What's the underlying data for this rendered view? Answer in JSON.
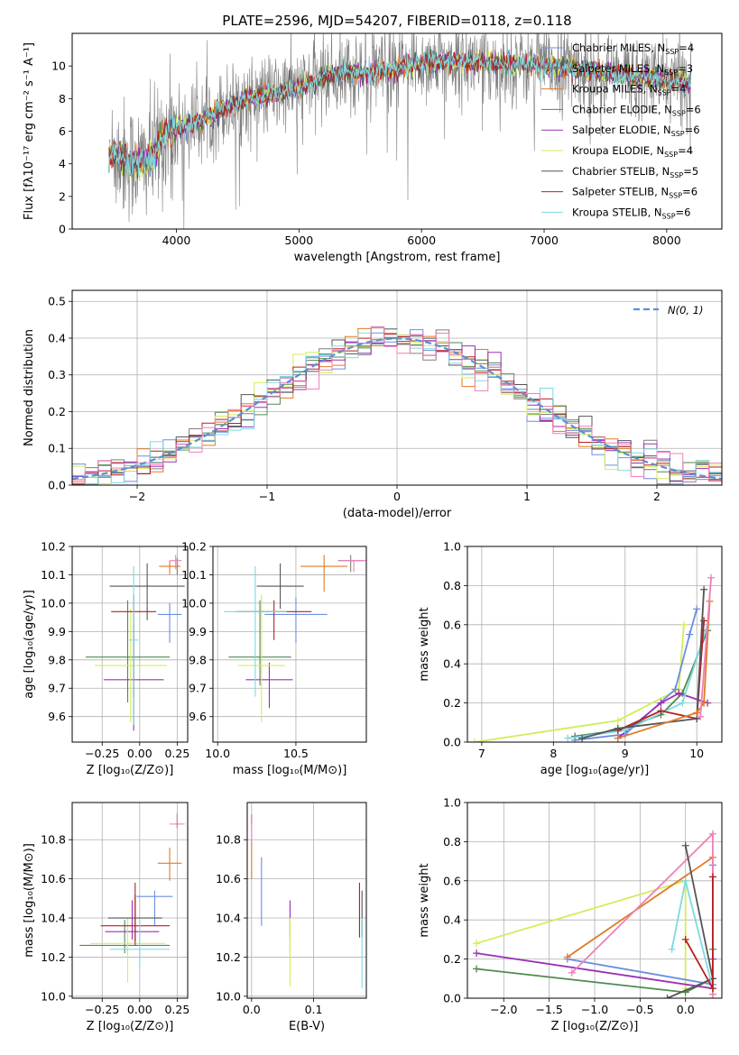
{
  "figure": {
    "title": "PLATE=2596, MJD=54207, FIBERID=0118, z=0.118"
  },
  "colors": {
    "Chabrier MILES": "#6c8ee0",
    "Salpeter MILES": "#7f7f7f",
    "Kroupa MILES": "#e07b28",
    "Chabrier ELODIE": "#4f8a4f",
    "Salpeter ELODIE": "#9b30b5",
    "Kroupa ELODIE": "#d4ec5a",
    "Chabrier STELIB": "#555555",
    "Salpeter STELIB": "#b22222",
    "Kroupa STELIB": "#7fd8e0",
    "Pink": "#f07fb8",
    "Normal": "#5b8fd6"
  },
  "chart_data": [
    {
      "id": "spectrum",
      "type": "line",
      "xlabel": "wavelength [Angstrom, rest frame]",
      "ylabel": "Flux [fλ10⁻¹⁷ erg cm⁻² s⁻¹ A⁻¹]",
      "xlim": [
        3150,
        8450
      ],
      "ylim": [
        0,
        12
      ],
      "xticks": [
        "4000",
        "5000",
        "6000",
        "7000",
        "8000"
      ],
      "yticks": [
        "0",
        "2",
        "4",
        "6",
        "8",
        "10"
      ],
      "continuum": {
        "x": [
          3450,
          3600,
          3700,
          3800,
          3900,
          4000,
          4200,
          4400,
          4600,
          4800,
          5000,
          5200,
          5400,
          5600,
          5800,
          6000,
          6200,
          6400,
          6600,
          6800,
          7000,
          7200,
          7400,
          7600,
          7800,
          8000,
          8200
        ],
        "y": [
          4.8,
          4.2,
          4.0,
          4.3,
          5.8,
          6.2,
          6.6,
          7.5,
          8.0,
          8.3,
          8.6,
          9.3,
          9.6,
          9.6,
          9.8,
          10.2,
          10.3,
          10.2,
          10.2,
          10.1,
          10.0,
          9.9,
          9.7,
          9.5,
          9.3,
          9.2,
          9.0
        ]
      },
      "legend": [
        {
          "label": "Chabrier MILES, N_SSP=4",
          "color": "#6c8ee0"
        },
        {
          "label": "Salpeter MILES, N_SSP=3",
          "color": "#7f7f7f"
        },
        {
          "label": "Kroupa MILES, N_SSP=4",
          "color": "#e07b28"
        },
        {
          "label": "Chabrier ELODIE, N_SSP=6",
          "color": "#4f8a4f"
        },
        {
          "label": "Salpeter ELODIE, N_SSP=6",
          "color": "#9b30b5"
        },
        {
          "label": "Kroupa ELODIE, N_SSP=4",
          "color": "#d4ec5a"
        },
        {
          "label": "Chabrier STELIB, N_SSP=5",
          "color": "#555555"
        },
        {
          "label": "Salpeter STELIB, N_SSP=6",
          "color": "#b22222"
        },
        {
          "label": "Kroupa STELIB, N_SSP=6",
          "color": "#7fd8e0"
        }
      ]
    },
    {
      "id": "residuals",
      "type": "line",
      "xlabel": "(data-model)/error",
      "ylabel": "Normed distribution",
      "xlim": [
        -2.5,
        2.5
      ],
      "ylim": [
        0,
        0.53
      ],
      "xticks": [
        "−2",
        "−1",
        "0",
        "1",
        "2"
      ],
      "yticks": [
        "0.0",
        "0.1",
        "0.2",
        "0.3",
        "0.4",
        "0.5"
      ],
      "grid": true,
      "legend": [
        {
          "label": "N(0, 1)",
          "color": "#5b8fd6"
        }
      ],
      "bins": {
        "start": -2.5,
        "width": 0.1,
        "count": 50
      }
    },
    {
      "id": "age-vs-Z",
      "type": "scatter",
      "xlabel": "Z [log₁₀(Z/Z⊙)]",
      "ylabel": "age  [log₁₀(age/yr)]",
      "xlim": [
        -0.45,
        0.32
      ],
      "ylim": [
        9.51,
        10.2
      ],
      "xticks": [
        "−0.25",
        "0.00",
        "0.25"
      ],
      "yticks": [
        "9.6",
        "9.7",
        "9.8",
        "9.9",
        "10.0",
        "10.1",
        "10.2"
      ],
      "grid": true,
      "points": [
        {
          "x": 0.2,
          "y": 9.96,
          "xe": 0.08,
          "yl": 0.1,
          "yh": 0.04,
          "color": "#6c8ee0"
        },
        {
          "x": 0.25,
          "y": 10.13,
          "xe": 0.02,
          "yl": 0.03,
          "yh": 0.03,
          "color": "#7f7f7f"
        },
        {
          "x": 0.2,
          "y": 10.13,
          "xe": 0.07,
          "yl": 0.03,
          "yh": 0.02,
          "color": "#e07b28"
        },
        {
          "x": -0.08,
          "y": 9.81,
          "xe": 0.28,
          "yl": 0.16,
          "yh": 0.2,
          "color": "#4f8a4f"
        },
        {
          "x": -0.04,
          "y": 9.73,
          "xe": 0.2,
          "yl": 0.18,
          "yh": 0.2,
          "color": "#9b30b5"
        },
        {
          "x": -0.06,
          "y": 9.78,
          "xe": 0.24,
          "yl": 0.2,
          "yh": 0.2,
          "color": "#d4ec5a"
        },
        {
          "x": 0.05,
          "y": 10.06,
          "xe": 0.25,
          "yl": 0.12,
          "yh": 0.08,
          "color": "#555555"
        },
        {
          "x": -0.04,
          "y": 9.97,
          "xe": 0.15,
          "yl": 0.3,
          "yh": 0.06,
          "color": "#b22222"
        },
        {
          "x": -0.04,
          "y": 9.87,
          "xe": 0.03,
          "yl": 0.3,
          "yh": 0.26,
          "color": "#7fd8e0"
        },
        {
          "x": 0.24,
          "y": 10.15,
          "xe": 0.04,
          "yl": 0.03,
          "yh": 0.02,
          "color": "#f07fb8"
        }
      ]
    },
    {
      "id": "age-vs-mass",
      "type": "scatter",
      "xlabel": "mass [log₁₀(M/M⊙)]",
      "ylabel": "",
      "xlim": [
        9.97,
        10.95
      ],
      "ylim": [
        9.51,
        10.2
      ],
      "xticks": [
        "10.0",
        "10.5"
      ],
      "yticks": [
        "9.6",
        "9.7",
        "9.8",
        "9.9",
        "10.0",
        "10.1",
        "10.2"
      ],
      "grid": true,
      "points": [
        {
          "x": 10.5,
          "y": 9.96,
          "xe": 0.2,
          "yl": 0.1,
          "yh": 0.06,
          "color": "#6c8ee0"
        },
        {
          "x": 10.85,
          "y": 10.15,
          "xe": 0.08,
          "yl": 0.04,
          "yh": 0.02,
          "color": "#7f7f7f"
        },
        {
          "x": 10.68,
          "y": 10.13,
          "xe": 0.15,
          "yl": 0.09,
          "yh": 0.04,
          "color": "#e07b28"
        },
        {
          "x": 10.27,
          "y": 9.81,
          "xe": 0.2,
          "yl": 0.1,
          "yh": 0.2,
          "color": "#4f8a4f"
        },
        {
          "x": 10.33,
          "y": 9.73,
          "xe": 0.15,
          "yl": 0.1,
          "yh": 0.06,
          "color": "#9b30b5"
        },
        {
          "x": 10.28,
          "y": 9.78,
          "xe": 0.15,
          "yl": 0.2,
          "yh": 0.25,
          "color": "#d4ec5a"
        },
        {
          "x": 10.4,
          "y": 10.06,
          "xe": 0.15,
          "yl": 0.08,
          "yh": 0.08,
          "color": "#555555"
        },
        {
          "x": 10.36,
          "y": 9.97,
          "xe": 0.24,
          "yl": 0.1,
          "yh": 0.04,
          "color": "#b22222"
        },
        {
          "x": 10.24,
          "y": 9.97,
          "xe": 0.2,
          "yl": 0.3,
          "yh": 0.16,
          "color": "#7fd8e0"
        },
        {
          "x": 10.87,
          "y": 10.15,
          "xe": 0.09,
          "yl": 0.04,
          "yh": 0.0,
          "color": "#f07fb8"
        }
      ]
    },
    {
      "id": "mass-weight-vs-age",
      "type": "line",
      "xlabel": "age  [log₁₀(age/yr)]",
      "ylabel": "mass weight",
      "xlim": [
        6.8,
        10.35
      ],
      "ylim": [
        0,
        1
      ],
      "xticks": [
        "7",
        "8",
        "9",
        "10"
      ],
      "yticks": [
        "0.0",
        "0.2",
        "0.4",
        "0.6",
        "0.8",
        "1.0"
      ],
      "grid": true,
      "series": [
        {
          "color": "#d4ec5a",
          "x": [
            6.9,
            8.9,
            9.75,
            9.82
          ],
          "y": [
            0.0,
            0.11,
            0.27,
            0.6
          ]
        },
        {
          "color": "#6c8ee0",
          "x": [
            8.3,
            9.0,
            9.7,
            9.9,
            10.0
          ],
          "y": [
            0.01,
            0.04,
            0.27,
            0.55,
            0.68
          ]
        },
        {
          "color": "#4f8a4f",
          "x": [
            8.3,
            8.9,
            9.5,
            9.8,
            10.15
          ],
          "y": [
            0.03,
            0.06,
            0.14,
            0.25,
            0.57
          ]
        },
        {
          "color": "#9b30b5",
          "x": [
            8.9,
            9.5,
            9.75,
            10.15
          ],
          "y": [
            0.02,
            0.2,
            0.25,
            0.2
          ]
        },
        {
          "color": "#7fd8e0",
          "x": [
            8.2,
            9.0,
            9.8,
            10.15
          ],
          "y": [
            0.02,
            0.06,
            0.2,
            0.6
          ]
        },
        {
          "color": "#b22222",
          "x": [
            8.9,
            9.5,
            10.0,
            10.1
          ],
          "y": [
            0.06,
            0.16,
            0.12,
            0.62
          ]
        },
        {
          "color": "#555555",
          "x": [
            8.4,
            8.9,
            10.0,
            10.1
          ],
          "y": [
            0.02,
            0.07,
            0.12,
            0.78
          ]
        },
        {
          "color": "#e07b28",
          "x": [
            8.9,
            10.0,
            10.1,
            10.18
          ],
          "y": [
            0.02,
            0.15,
            0.2,
            0.72
          ]
        },
        {
          "color": "#f07fb8",
          "x": [
            10.05,
            10.2
          ],
          "y": [
            0.13,
            0.84
          ]
        }
      ]
    },
    {
      "id": "mass-vs-Z",
      "type": "scatter",
      "xlabel": "Z [log₁₀(Z/Z⊙)]",
      "ylabel": "mass [log₁₀(M/M⊙)]",
      "xlim": [
        -0.45,
        0.32
      ],
      "ylim": [
        9.99,
        10.99
      ],
      "xticks": [
        "−0.25",
        "0.00",
        "0.25"
      ],
      "yticks": [
        "10.0",
        "10.2",
        "10.4",
        "10.6",
        "10.8"
      ],
      "grid": true,
      "points": [
        {
          "x": 0.1,
          "y": 10.51,
          "xe": 0.12,
          "yl": 0.15,
          "yh": 0.03,
          "color": "#6c8ee0"
        },
        {
          "x": 0.25,
          "y": 10.88,
          "xe": 0.01,
          "yl": 0.02,
          "yh": 0.05,
          "color": "#7f7f7f"
        },
        {
          "x": 0.2,
          "y": 10.68,
          "xe": 0.08,
          "yl": 0.09,
          "yh": 0.08,
          "color": "#e07b28"
        },
        {
          "x": -0.1,
          "y": 10.26,
          "xe": 0.3,
          "yl": 0.04,
          "yh": 0.13,
          "color": "#4f8a4f"
        },
        {
          "x": -0.05,
          "y": 10.33,
          "xe": 0.18,
          "yl": 0.04,
          "yh": 0.16,
          "color": "#9b30b5"
        },
        {
          "x": -0.08,
          "y": 10.27,
          "xe": 0.25,
          "yl": 0.2,
          "yh": 0.13,
          "color": "#d4ec5a"
        },
        {
          "x": -0.03,
          "y": 10.4,
          "xe": 0.18,
          "yl": 0.12,
          "yh": 0.12,
          "color": "#555555"
        },
        {
          "x": -0.03,
          "y": 10.36,
          "xe": 0.23,
          "yl": 0.1,
          "yh": 0.22,
          "color": "#b22222"
        },
        {
          "x": 0.0,
          "y": 10.24,
          "xe": 0.2,
          "yl": 0.09,
          "yh": 0.15,
          "color": "#7fd8e0"
        },
        {
          "x": 0.25,
          "y": 10.88,
          "xe": 0.05,
          "yl": 0.02,
          "yh": 0.06,
          "color": "#f07fb8"
        }
      ]
    },
    {
      "id": "mass-vs-EBV",
      "type": "scatter",
      "xlabel": "E(B-V)",
      "ylabel": "",
      "xlim": [
        -0.007,
        0.185
      ],
      "ylim": [
        9.99,
        10.99
      ],
      "xticks": [
        "0.0",
        "0.1"
      ],
      "yticks": [
        "10.0",
        "10.2",
        "10.4",
        "10.6",
        "10.8"
      ],
      "grid": true,
      "points": [
        {
          "x": 0.016,
          "y": 10.51,
          "xe": 0.0,
          "yl": 0.15,
          "yh": 0.2,
          "color": "#6c8ee0"
        },
        {
          "x": 0.0,
          "y": 10.88,
          "xe": 0.0,
          "yl": 0.0,
          "yh": 0.05,
          "color": "#7f7f7f"
        },
        {
          "x": 0.0,
          "y": 10.72,
          "xe": 0.0,
          "yl": 0.12,
          "yh": 0.08,
          "color": "#e07b28"
        },
        {
          "x": 0.062,
          "y": 10.26,
          "xe": 0.0,
          "yl": 0.04,
          "yh": 0.14,
          "color": "#4f8a4f"
        },
        {
          "x": 0.062,
          "y": 10.4,
          "xe": 0.0,
          "yl": 0.1,
          "yh": 0.09,
          "color": "#9b30b5"
        },
        {
          "x": 0.062,
          "y": 10.25,
          "xe": 0.0,
          "yl": 0.2,
          "yh": 0.15,
          "color": "#d4ec5a"
        },
        {
          "x": 0.178,
          "y": 10.4,
          "xe": 0.0,
          "yl": 0.1,
          "yh": 0.14,
          "color": "#555555"
        },
        {
          "x": 0.174,
          "y": 10.4,
          "xe": 0.0,
          "yl": 0.1,
          "yh": 0.18,
          "color": "#b22222"
        },
        {
          "x": 0.178,
          "y": 10.24,
          "xe": 0.0,
          "yl": 0.2,
          "yh": 0.16,
          "color": "#7fd8e0"
        },
        {
          "x": 0.0,
          "y": 10.88,
          "xe": 0.0,
          "yl": 0.1,
          "yh": 0.05,
          "color": "#f07fb8"
        }
      ]
    },
    {
      "id": "mass-weight-vs-Z",
      "type": "line",
      "xlabel": "Z [log₁₀(Z/Z⊙)]",
      "ylabel": "mass weight",
      "xlim": [
        -2.4,
        0.4
      ],
      "ylim": [
        0,
        1
      ],
      "xticks": [
        "−2.0",
        "−1.5",
        "−1.0",
        "−0.5",
        "0.0"
      ],
      "yticks": [
        "0.0",
        "0.2",
        "0.4",
        "0.6",
        "0.8",
        "1.0"
      ],
      "grid": true,
      "series": [
        {
          "color": "#d4ec5a",
          "x": [
            -2.3,
            0.0,
            0.0
          ],
          "y": [
            0.28,
            0.6,
            0.05
          ]
        },
        {
          "color": "#4f8a4f",
          "x": [
            -2.3,
            0.0,
            0.3,
            0.3
          ],
          "y": [
            0.15,
            0.03,
            0.1,
            0.25
          ]
        },
        {
          "color": "#9b30b5",
          "x": [
            -2.3,
            0.3,
            0.3
          ],
          "y": [
            0.23,
            0.05,
            0.2
          ]
        },
        {
          "color": "#6c8ee0",
          "x": [
            -1.3,
            0.3,
            0.3
          ],
          "y": [
            0.2,
            0.07,
            0.68
          ]
        },
        {
          "color": "#e07b28",
          "x": [
            -1.3,
            0.3,
            0.3
          ],
          "y": [
            0.21,
            0.72,
            0.02
          ]
        },
        {
          "color": "#f07fb8",
          "x": [
            -1.25,
            0.3,
            0.3
          ],
          "y": [
            0.13,
            0.84,
            0.02
          ]
        },
        {
          "color": "#555555",
          "x": [
            0.0,
            0.3,
            -0.2
          ],
          "y": [
            0.78,
            0.1,
            0.0
          ]
        },
        {
          "color": "#7fd8e0",
          "x": [
            -0.15,
            0.0,
            0.3
          ],
          "y": [
            0.25,
            0.6,
            0.05
          ]
        },
        {
          "color": "#b22222",
          "x": [
            0.0,
            0.3,
            0.3
          ],
          "y": [
            0.3,
            0.05,
            0.62
          ]
        }
      ]
    }
  ]
}
